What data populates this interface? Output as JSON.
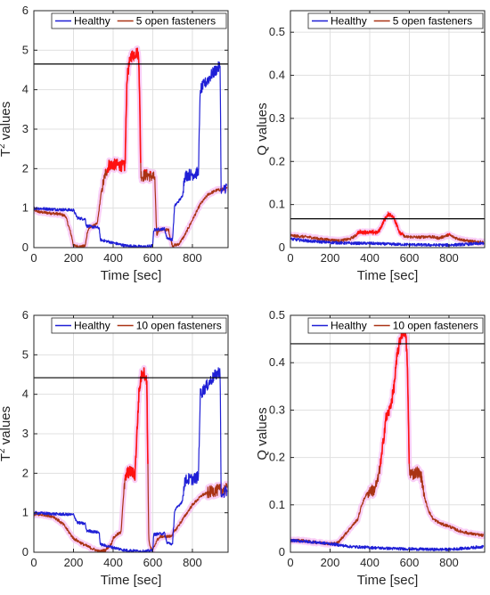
{
  "colors": {
    "healthy": "#1f1fd6",
    "damaged": "#a93314",
    "damaged_peak": "#ff1111",
    "highlight": "#f7c3f5",
    "threshold": "#000000",
    "grid": "#e0e0e0"
  },
  "chart_data": [
    {
      "type": "line",
      "xlabel": "Time [sec]",
      "ylabel": "T² values",
      "ylabel_parts": [
        "T",
        "2",
        " values"
      ],
      "xlim": [
        0,
        980
      ],
      "ylim": [
        0,
        6
      ],
      "xticks": [
        0,
        200,
        400,
        600,
        800
      ],
      "yticks": [
        0,
        1,
        2,
        3,
        4,
        5,
        6
      ],
      "grid": true,
      "legend": "top",
      "threshold": 4.65,
      "series": [
        {
          "name": "Healthy",
          "x": [
            0,
            100,
            200,
            220,
            260,
            265,
            330,
            335,
            400,
            460,
            560,
            600,
            605,
            660,
            670,
            700,
            710,
            750,
            760,
            780,
            800,
            830,
            840,
            900,
            920,
            940,
            945,
            960,
            975
          ],
          "y": [
            1.0,
            0.97,
            0.95,
            0.75,
            0.72,
            0.55,
            0.5,
            0.2,
            0.12,
            0.05,
            0.02,
            0.05,
            0.45,
            0.48,
            0.25,
            0.2,
            1.05,
            1.3,
            1.8,
            1.85,
            1.85,
            1.9,
            4.0,
            4.4,
            4.5,
            4.6,
            1.4,
            1.5,
            1.55
          ]
        },
        {
          "name": "5 open fasteners",
          "x": [
            0,
            30,
            130,
            160,
            190,
            200,
            240,
            260,
            270,
            280,
            300,
            320,
            340,
            360,
            380,
            420,
            460,
            470,
            480,
            490,
            520,
            530,
            540,
            550,
            560,
            600,
            610,
            620,
            630,
            680,
            690,
            700,
            730,
            760,
            800,
            840,
            880,
            920,
            975
          ],
          "y": [
            0.95,
            0.9,
            0.85,
            0.8,
            0.3,
            0.05,
            0.02,
            0.05,
            0.4,
            0.5,
            0.55,
            0.6,
            1.4,
            1.85,
            2.1,
            2.1,
            2.05,
            4.3,
            4.6,
            4.85,
            4.95,
            4.85,
            1.85,
            1.8,
            1.85,
            1.8,
            1.75,
            0.3,
            0.45,
            0.45,
            0.2,
            0.05,
            0.08,
            0.3,
            0.7,
            1.1,
            1.35,
            1.45,
            1.5
          ]
        }
      ]
    },
    {
      "type": "line",
      "xlabel": "Time [sec]",
      "ylabel": "Q values",
      "xlim": [
        0,
        980
      ],
      "ylim": [
        0,
        0.55
      ],
      "xticks": [
        0,
        200,
        400,
        600,
        800
      ],
      "yticks": [
        0,
        0.1,
        0.2,
        0.3,
        0.4,
        0.5
      ],
      "grid": true,
      "legend": "top",
      "threshold": 0.067,
      "series": [
        {
          "name": "Healthy",
          "x": [
            0,
            100,
            200,
            300,
            400,
            500,
            600,
            700,
            800,
            900,
            975
          ],
          "y": [
            0.02,
            0.015,
            0.012,
            0.01,
            0.01,
            0.008,
            0.007,
            0.006,
            0.006,
            0.008,
            0.01
          ]
        },
        {
          "name": "5 open fasteners",
          "x": [
            0,
            50,
            100,
            150,
            200,
            250,
            300,
            330,
            340,
            400,
            440,
            460,
            480,
            500,
            520,
            540,
            550,
            580,
            600,
            650,
            700,
            750,
            800,
            820,
            850,
            900,
            975
          ],
          "y": [
            0.028,
            0.026,
            0.024,
            0.02,
            0.018,
            0.016,
            0.02,
            0.028,
            0.035,
            0.036,
            0.035,
            0.05,
            0.07,
            0.078,
            0.07,
            0.05,
            0.035,
            0.025,
            0.025,
            0.024,
            0.026,
            0.022,
            0.03,
            0.025,
            0.02,
            0.015,
            0.012
          ]
        }
      ]
    },
    {
      "type": "line",
      "xlabel": "Time [sec]",
      "ylabel": "T² values",
      "ylabel_parts": [
        "T",
        "2",
        " values"
      ],
      "xlim": [
        0,
        980
      ],
      "ylim": [
        0,
        6
      ],
      "xticks": [
        0,
        200,
        400,
        600,
        800
      ],
      "yticks": [
        0,
        1,
        2,
        3,
        4,
        5,
        6
      ],
      "grid": true,
      "legend": "top",
      "threshold": 4.42,
      "series": [
        {
          "name": "Healthy",
          "x": [
            0,
            100,
            200,
            220,
            260,
            265,
            330,
            335,
            400,
            460,
            560,
            600,
            605,
            660,
            670,
            700,
            710,
            750,
            760,
            780,
            800,
            830,
            840,
            900,
            920,
            940,
            945,
            960,
            975
          ],
          "y": [
            1.0,
            0.97,
            0.95,
            0.75,
            0.72,
            0.55,
            0.5,
            0.2,
            0.12,
            0.05,
            0.02,
            0.05,
            0.45,
            0.48,
            0.25,
            0.2,
            1.05,
            1.3,
            1.8,
            1.85,
            1.85,
            1.9,
            4.0,
            4.4,
            4.5,
            4.6,
            1.4,
            1.5,
            1.55
          ]
        },
        {
          "name": "10 open fasteners",
          "x": [
            0,
            50,
            100,
            150,
            200,
            250,
            300,
            330,
            360,
            390,
            400,
            420,
            440,
            450,
            460,
            470,
            490,
            510,
            520,
            530,
            540,
            550,
            560,
            570,
            580,
            590,
            600,
            620,
            640,
            660,
            690,
            720,
            760,
            800,
            850,
            900,
            975
          ],
          "y": [
            0.95,
            0.95,
            0.9,
            0.7,
            0.35,
            0.2,
            0.08,
            0.02,
            0.05,
            0.2,
            0.35,
            0.45,
            0.5,
            1.3,
            1.8,
            2.0,
            2.05,
            1.95,
            3.0,
            4.0,
            4.4,
            4.6,
            4.5,
            4.3,
            0.3,
            0.1,
            0.05,
            0.3,
            0.4,
            0.4,
            0.4,
            0.6,
            0.9,
            1.2,
            1.45,
            1.55,
            1.6
          ]
        }
      ]
    },
    {
      "type": "line",
      "xlabel": "Time [sec]",
      "ylabel": "Q values",
      "xlim": [
        0,
        980
      ],
      "ylim": [
        0,
        0.5
      ],
      "xticks": [
        0,
        200,
        400,
        600,
        800
      ],
      "yticks": [
        0,
        0.1,
        0.2,
        0.3,
        0.4,
        0.5
      ],
      "grid": true,
      "legend": "top",
      "threshold": 0.44,
      "series": [
        {
          "name": "Healthy",
          "x": [
            0,
            100,
            200,
            300,
            400,
            500,
            600,
            700,
            800,
            900,
            975
          ],
          "y": [
            0.025,
            0.022,
            0.018,
            0.012,
            0.01,
            0.008,
            0.007,
            0.006,
            0.006,
            0.009,
            0.012
          ]
        },
        {
          "name": "10 open fasteners",
          "x": [
            0,
            50,
            100,
            150,
            200,
            240,
            260,
            300,
            340,
            360,
            380,
            400,
            420,
            440,
            460,
            480,
            500,
            520,
            540,
            560,
            580,
            590,
            600,
            620,
            640,
            660,
            680,
            700,
            720,
            760,
            800,
            850,
            900,
            975
          ],
          "y": [
            0.025,
            0.025,
            0.022,
            0.02,
            0.018,
            0.02,
            0.03,
            0.05,
            0.07,
            0.1,
            0.12,
            0.13,
            0.13,
            0.15,
            0.2,
            0.28,
            0.3,
            0.34,
            0.42,
            0.46,
            0.47,
            0.4,
            0.17,
            0.165,
            0.17,
            0.16,
            0.11,
            0.085,
            0.07,
            0.06,
            0.055,
            0.045,
            0.04,
            0.035
          ]
        }
      ]
    }
  ]
}
